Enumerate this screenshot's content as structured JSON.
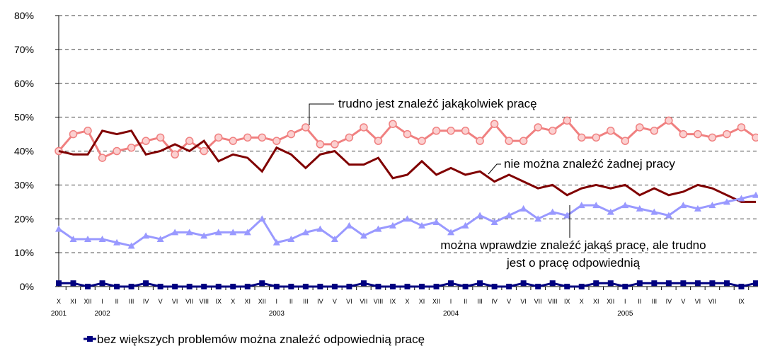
{
  "chart_data": {
    "type": "line",
    "categories": [
      "X",
      "XI",
      "XII",
      "I",
      "II",
      "III",
      "IV",
      "V",
      "VI",
      "VII",
      "VIII",
      "IX",
      "X",
      "XI",
      "XII",
      "I",
      "II",
      "III",
      "IV",
      "V",
      "VI",
      "VII",
      "VIII",
      "IX",
      "X",
      "XI",
      "XII",
      "I",
      "II",
      "III",
      "IV",
      "V",
      "VI",
      "VII",
      "VIII",
      "IX",
      "X",
      "XI",
      "XII",
      "I",
      "II",
      "III",
      "IV",
      "V",
      "VI",
      "VII",
      null,
      "IX",
      null
    ],
    "years": [
      "2001",
      null,
      null,
      "2002",
      null,
      null,
      null,
      null,
      null,
      null,
      null,
      null,
      null,
      null,
      null,
      "2003",
      null,
      null,
      null,
      null,
      null,
      null,
      null,
      null,
      null,
      null,
      null,
      "2004",
      null,
      null,
      null,
      null,
      null,
      null,
      null,
      null,
      null,
      null,
      null,
      "2005",
      null,
      null,
      null,
      null,
      null,
      null,
      null,
      null,
      null
    ],
    "ylim": [
      0,
      80
    ],
    "yticks": [
      {
        "value": 0,
        "label": "0%"
      },
      {
        "value": 10,
        "label": "10%"
      },
      {
        "value": 20,
        "label": "20%"
      },
      {
        "value": 30,
        "label": "30%"
      },
      {
        "value": 40,
        "label": "40%"
      },
      {
        "value": 50,
        "label": "50%"
      },
      {
        "value": 60,
        "label": "60%"
      },
      {
        "value": 70,
        "label": "70%"
      },
      {
        "value": 80,
        "label": "80%"
      }
    ],
    "grid": true,
    "series": [
      {
        "name": "trudno jest znaleźć jakąkolwiek pracę",
        "color": "#f08080",
        "marker": "circle",
        "values": [
          40,
          45,
          46,
          38,
          40,
          41,
          43,
          44,
          39,
          43,
          40,
          44,
          43,
          44,
          44,
          43,
          45,
          47,
          42,
          42,
          44,
          47,
          43,
          48,
          45,
          43,
          46,
          46,
          46,
          43,
          48,
          43,
          43,
          47,
          46,
          49,
          44,
          44,
          46,
          43,
          47,
          46,
          49,
          45,
          45,
          44,
          45,
          47,
          44
        ]
      },
      {
        "name": "nie można znaleźć żadnej pracy",
        "color": "#800000",
        "marker": "none",
        "values": [
          40,
          39,
          39,
          46,
          45,
          46,
          39,
          40,
          42,
          40,
          43,
          37,
          39,
          38,
          34,
          41,
          39,
          35,
          39,
          40,
          36,
          36,
          38,
          32,
          33,
          37,
          33,
          35,
          33,
          34,
          31,
          33,
          31,
          29,
          30,
          27,
          29,
          30,
          29,
          30,
          27,
          29,
          27,
          28,
          30,
          29,
          27,
          25,
          25
        ]
      },
      {
        "name": "można wprawdzie znaleźć jakąś pracę, ale trudno jest o pracę odpowiednią",
        "color": "#9999ff",
        "marker": "triangle",
        "values": [
          17,
          14,
          14,
          14,
          13,
          12,
          15,
          14,
          16,
          16,
          15,
          16,
          16,
          16,
          20,
          13,
          14,
          16,
          17,
          14,
          18,
          15,
          17,
          18,
          20,
          18,
          19,
          16,
          18,
          21,
          19,
          21,
          23,
          20,
          22,
          21,
          24,
          24,
          22,
          24,
          23,
          22,
          21,
          24,
          23,
          24,
          25,
          26,
          27
        ]
      },
      {
        "name": "bez większych problemów można znaleźć odpowiednią pracę",
        "color": "#000080",
        "marker": "square",
        "values": [
          1,
          1,
          0,
          1,
          0,
          0,
          1,
          0,
          0,
          0,
          0,
          0,
          0,
          0,
          1,
          0,
          0,
          0,
          0,
          0,
          0,
          1,
          0,
          0,
          0,
          0,
          0,
          1,
          0,
          1,
          0,
          0,
          1,
          0,
          1,
          0,
          0,
          1,
          1,
          0,
          1,
          1,
          1,
          1,
          1,
          1,
          1,
          0,
          1
        ]
      }
    ]
  }
}
